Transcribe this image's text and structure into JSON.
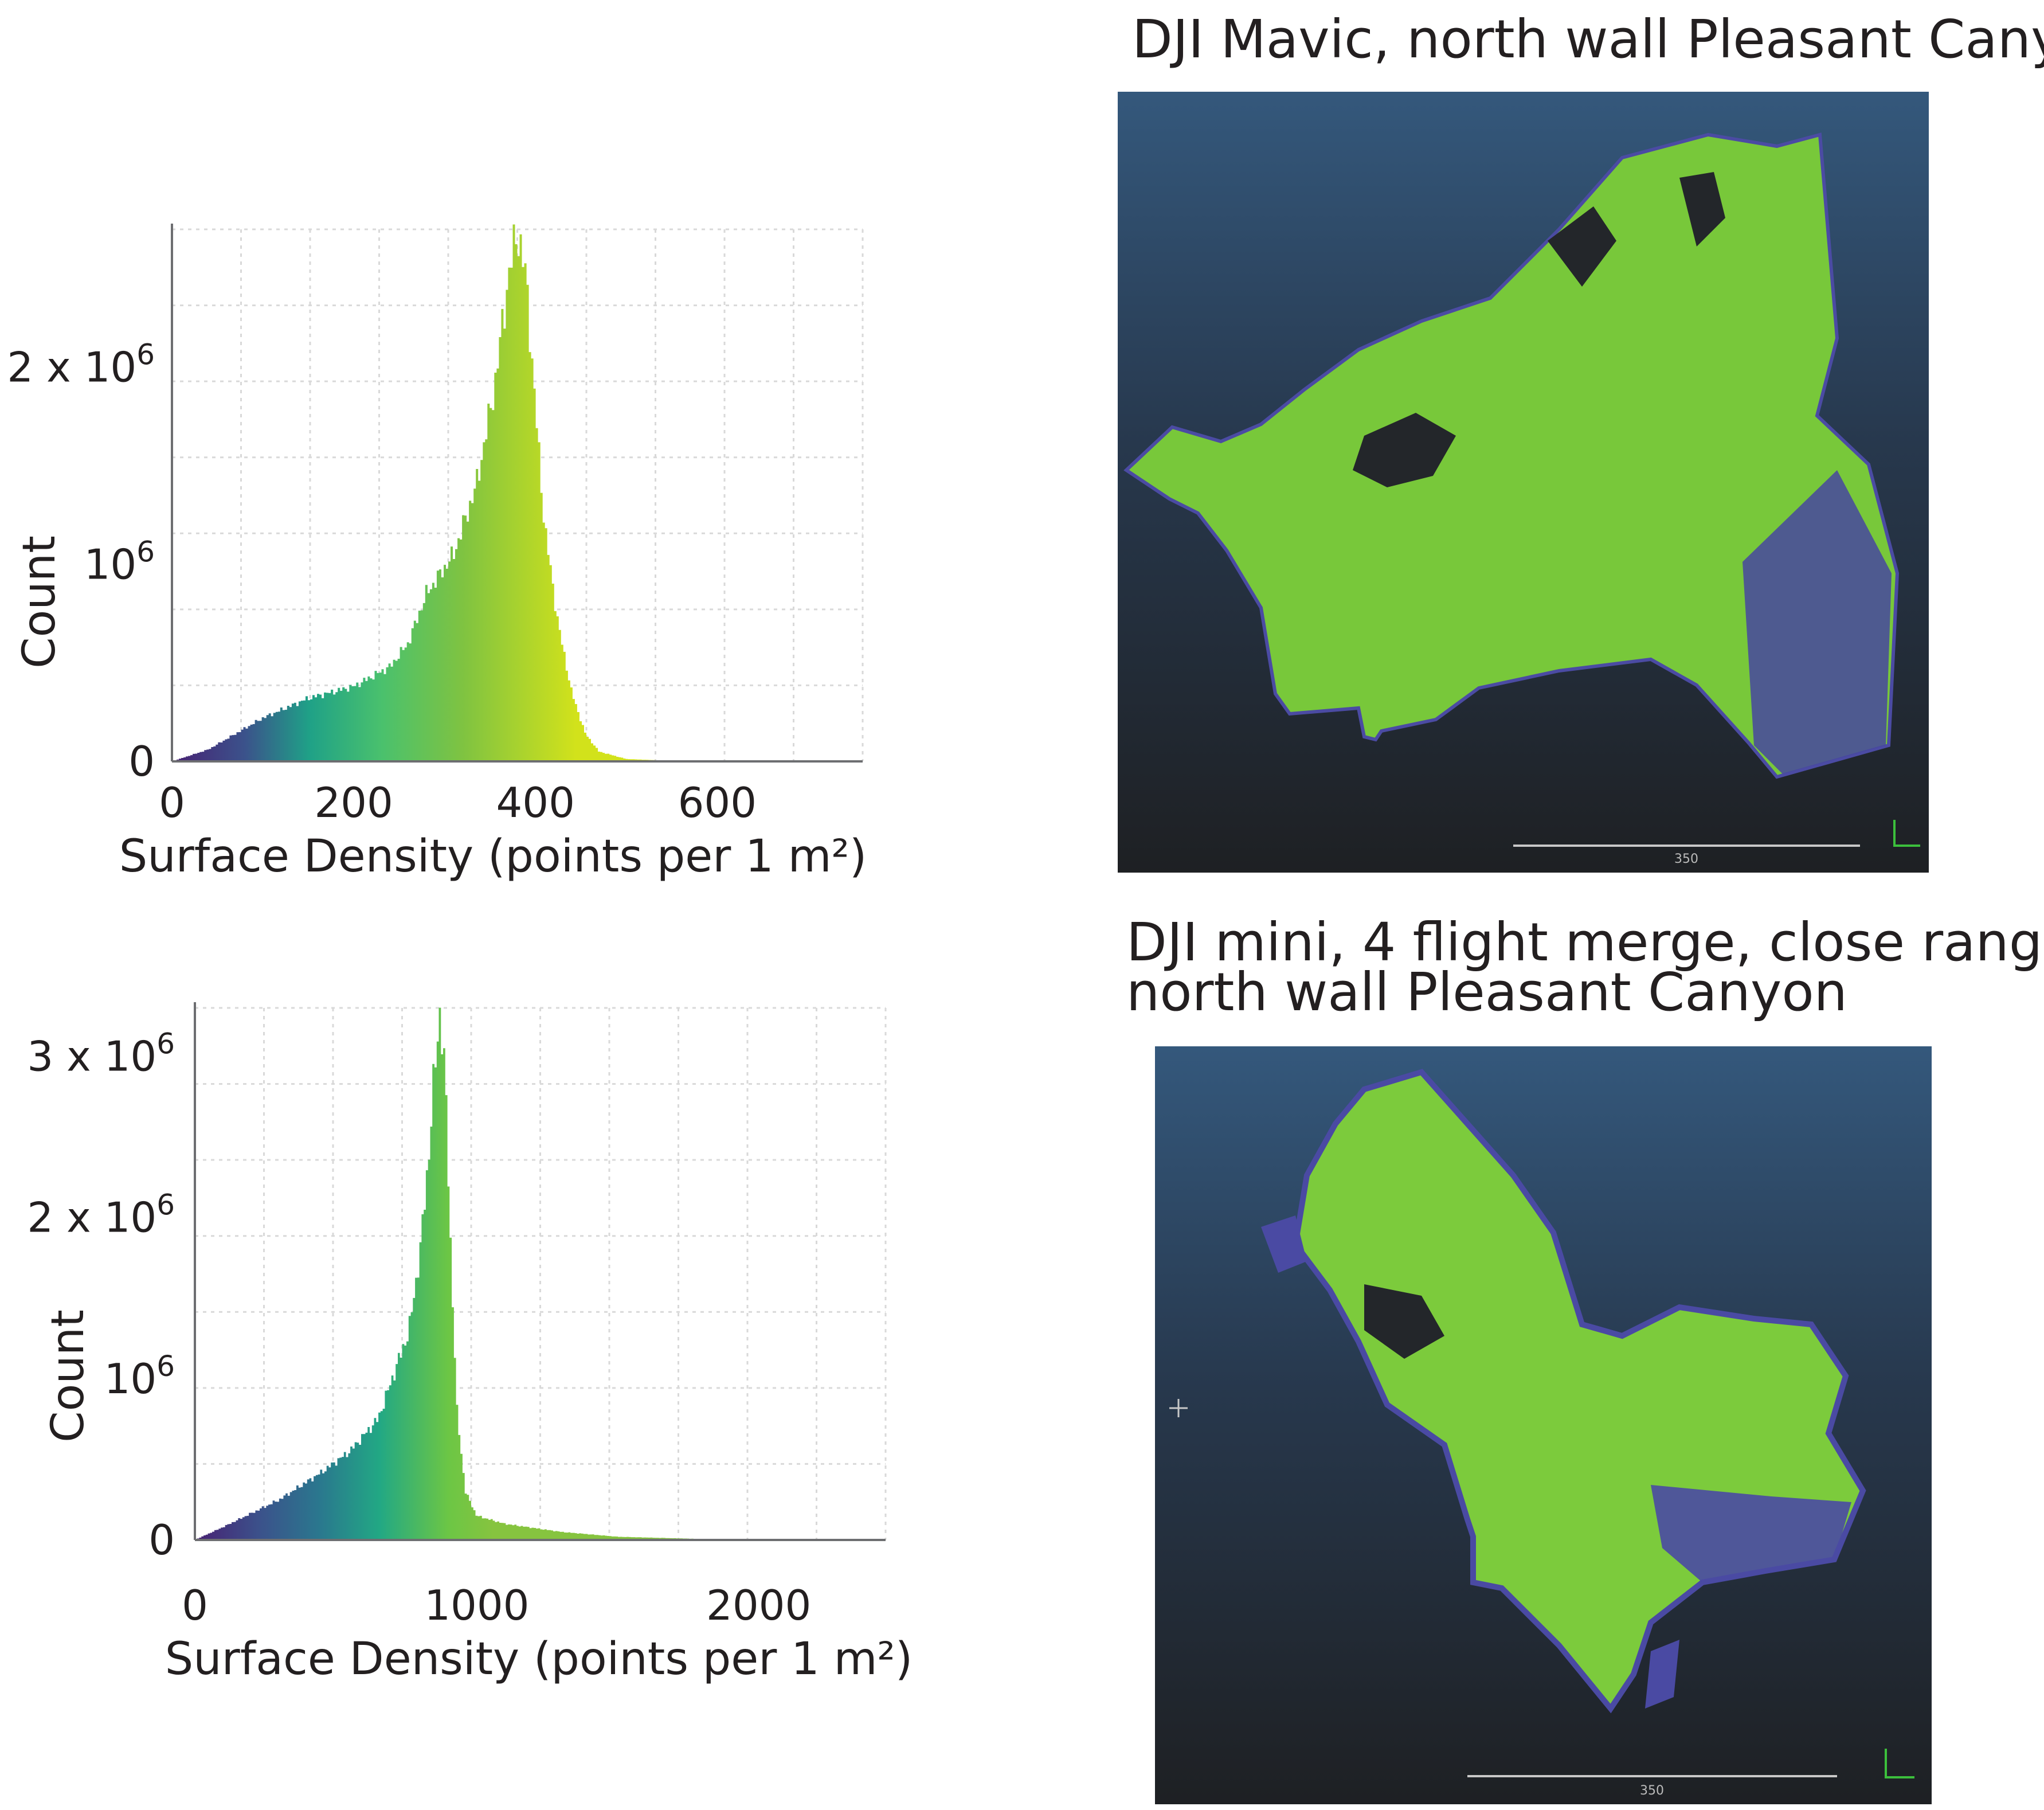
{
  "chart_data": [
    {
      "type": "bar",
      "title": "",
      "xlabel": "Surface Density (points per 1 m²)",
      "ylabel": "Count",
      "xlim": [
        0,
        760
      ],
      "ylim": [
        0,
        2700000
      ],
      "x_ticks": [
        0,
        200,
        400,
        600
      ],
      "y_tick_values": [
        0,
        1000000,
        2000000
      ],
      "y_tick_labels": [
        "0",
        "10⁶",
        "2 x 10⁶"
      ],
      "y_tick_exps": [
        "",
        "6",
        "6"
      ],
      "y_tick_bases": [
        "0",
        "10",
        "2 x 10"
      ],
      "grid": true,
      "colormap": "viridis",
      "profile": [
        [
          0,
          0
        ],
        [
          40,
          60000
        ],
        [
          100,
          220000
        ],
        [
          150,
          320000
        ],
        [
          200,
          380000
        ],
        [
          240,
          480000
        ],
        [
          260,
          600000
        ],
        [
          280,
          850000
        ],
        [
          310,
          1050000
        ],
        [
          335,
          1400000
        ],
        [
          355,
          1900000
        ],
        [
          370,
          2450000
        ],
        [
          380,
          2700000
        ],
        [
          390,
          2450000
        ],
        [
          400,
          1800000
        ],
        [
          410,
          1200000
        ],
        [
          425,
          700000
        ],
        [
          440,
          350000
        ],
        [
          455,
          140000
        ],
        [
          470,
          50000
        ],
        [
          500,
          12000
        ],
        [
          550,
          3000
        ],
        [
          760,
          0
        ]
      ]
    },
    {
      "type": "bar",
      "title": "",
      "xlabel": "Surface Density (points per 1 m²)",
      "ylabel": "Count",
      "xlim": [
        0,
        2450
      ],
      "ylim": [
        0,
        3300000
      ],
      "x_ticks": [
        0,
        1000,
        2000
      ],
      "y_tick_values": [
        0,
        1000000,
        2000000,
        3000000
      ],
      "y_tick_labels": [
        "0",
        "10⁶",
        "2 x 10⁶",
        "3 x 10⁶"
      ],
      "y_tick_exps": [
        "",
        "6",
        "6",
        "6"
      ],
      "y_tick_bases": [
        "0",
        "10",
        "2 x 10",
        "3 x 10"
      ],
      "grid": true,
      "colormap": "viridis",
      "profile": [
        [
          0,
          0
        ],
        [
          100,
          80000
        ],
        [
          300,
          250000
        ],
        [
          450,
          420000
        ],
        [
          550,
          550000
        ],
        [
          650,
          750000
        ],
        [
          700,
          1000000
        ],
        [
          760,
          1300000
        ],
        [
          800,
          1800000
        ],
        [
          830,
          2400000
        ],
        [
          850,
          2900000
        ],
        [
          870,
          3300000
        ],
        [
          890,
          2800000
        ],
        [
          910,
          1700000
        ],
        [
          930,
          800000
        ],
        [
          960,
          300000
        ],
        [
          1000,
          150000
        ],
        [
          1100,
          100000
        ],
        [
          1300,
          50000
        ],
        [
          1500,
          20000
        ],
        [
          1800,
          6000
        ],
        [
          2450,
          0
        ]
      ]
    }
  ],
  "panels": [
    {
      "title": "DJI Mavic, north wall Pleasant Canyon",
      "scale_label": "350"
    },
    {
      "title_lines": [
        "DJI mini, 4 flight merge, close range,",
        "north wall Pleasant Canyon"
      ],
      "scale_label": "350"
    }
  ],
  "colors": {
    "viridis": [
      "#440154",
      "#414487",
      "#2a788e",
      "#22a884",
      "#7ad151",
      "#fde725"
    ],
    "sky_top": "#33577a",
    "sky_bottom": "#1f2124",
    "cloud_green": "#7ccb3c",
    "cloud_purple": "#4a4aa0"
  }
}
